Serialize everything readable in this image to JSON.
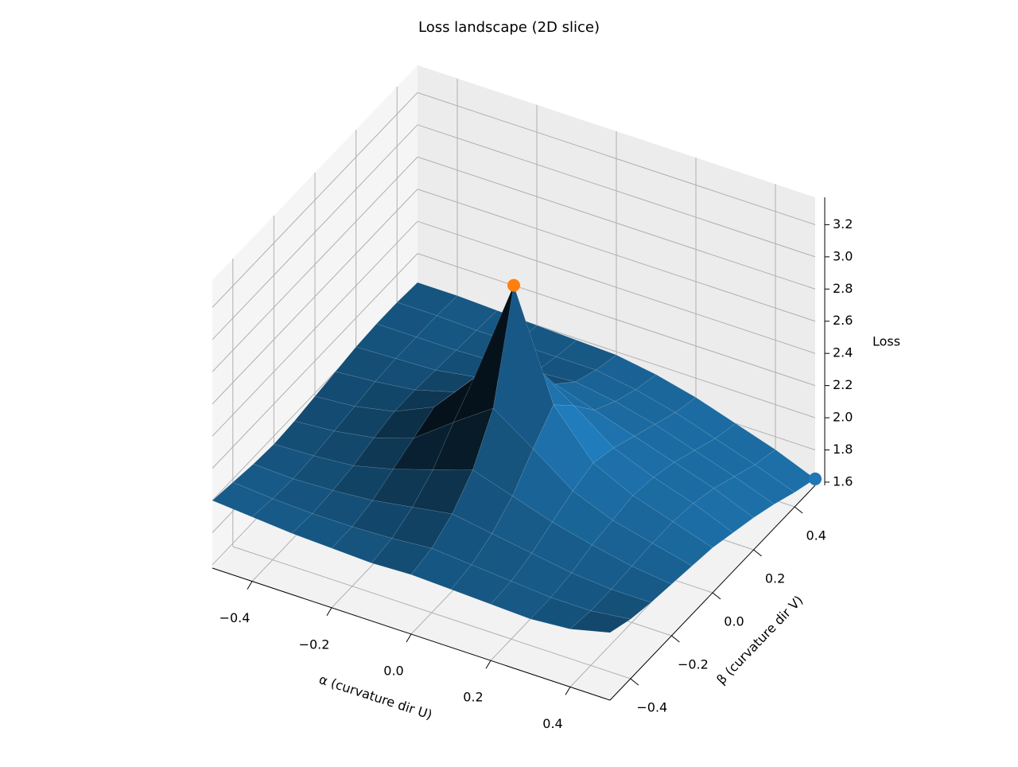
{
  "chart_data": {
    "type": "surface3d",
    "title": "Loss landscape (2D slice)",
    "xlabel": "α (curvature dir U)",
    "ylabel": "β (curvature dir V)",
    "zlabel": "Loss",
    "xlim": [
      -0.5,
      0.5
    ],
    "ylim": [
      -0.5,
      0.5
    ],
    "zlim": [
      1.58,
      3.37
    ],
    "xticks": [
      {
        "value": -0.4,
        "label": "−0.4"
      },
      {
        "value": -0.2,
        "label": "−0.2"
      },
      {
        "value": 0,
        "label": "0.0"
      },
      0.2,
      0.4
    ],
    "yticks": [
      {
        "value": -0.4,
        "label": "−0.4"
      },
      {
        "value": -0.2,
        "label": "−0.2"
      },
      {
        "value": 0,
        "label": "0.0"
      },
      0.2,
      0.4
    ],
    "zticks": [
      1.6,
      1.8,
      {
        "value": 2,
        "label": "2.0"
      },
      2.2,
      2.4,
      2.6,
      2.8,
      {
        "value": 3,
        "label": "3.0"
      },
      3.2
    ],
    "grid": true,
    "color": "#1f77b4",
    "x": [
      -0.5,
      -0.4,
      -0.3,
      -0.2,
      -0.1,
      0,
      0.1,
      0.2,
      0.3,
      0.4,
      0.5
    ],
    "y": [
      -0.5,
      -0.4,
      -0.3,
      -0.2,
      -0.1,
      0,
      0.1,
      0.2,
      0.3,
      0.4,
      0.5
    ],
    "z": [
      [
        2.0,
        1.98,
        1.96,
        1.95,
        1.94,
        1.95,
        1.94,
        1.93,
        1.92,
        1.94,
        2.0
      ],
      [
        1.98,
        1.96,
        1.95,
        1.95,
        1.96,
        1.98,
        1.96,
        1.94,
        1.92,
        1.92,
        1.95
      ],
      [
        1.96,
        1.95,
        1.96,
        1.98,
        2.02,
        2.06,
        2.02,
        1.98,
        1.94,
        1.92,
        1.92
      ],
      [
        1.95,
        1.96,
        1.98,
        2.04,
        2.12,
        2.2,
        2.12,
        2.04,
        1.98,
        1.93,
        1.9
      ],
      [
        1.96,
        1.98,
        2.02,
        2.1,
        2.28,
        2.45,
        2.28,
        2.1,
        2.0,
        1.94,
        1.88
      ],
      [
        1.98,
        2.0,
        2.05,
        2.16,
        2.42,
        3.08,
        2.42,
        2.14,
        2.02,
        1.94,
        1.86
      ],
      [
        2.0,
        2.02,
        2.05,
        2.12,
        2.28,
        2.45,
        2.28,
        2.1,
        2.0,
        1.92,
        1.82
      ],
      [
        2.02,
        2.03,
        2.04,
        2.08,
        2.14,
        2.2,
        2.12,
        2.04,
        1.96,
        1.88,
        1.78
      ],
      [
        2.03,
        2.03,
        2.03,
        2.04,
        2.06,
        2.08,
        2.04,
        1.98,
        1.9,
        1.82,
        1.73
      ],
      [
        2.03,
        2.03,
        2.02,
        2.02,
        2.02,
        2.02,
        1.98,
        1.92,
        1.84,
        1.76,
        1.67
      ],
      [
        2.02,
        2.02,
        2.01,
        2.0,
        1.99,
        1.98,
        1.94,
        1.88,
        1.8,
        1.72,
        1.62
      ]
    ],
    "points": [
      {
        "color": "#ff7f0e",
        "x": 0,
        "y": 0,
        "z": 3.08
      },
      {
        "color": "#1f77b4",
        "x": 0.5,
        "y": 0.5,
        "z": 1.62
      }
    ]
  }
}
